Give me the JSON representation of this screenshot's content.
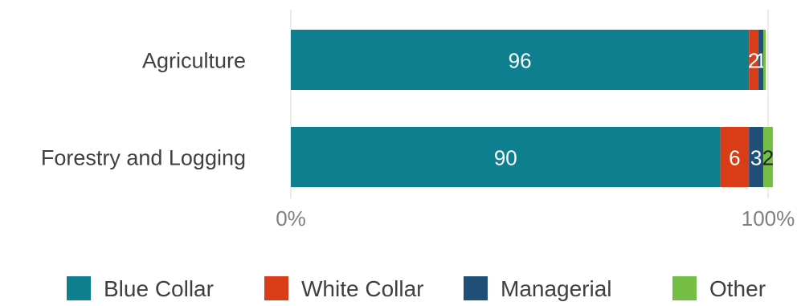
{
  "chart_data": {
    "type": "bar",
    "orientation": "horizontal",
    "stacked": true,
    "categories": [
      "Agriculture",
      "Forestry and Logging"
    ],
    "series": [
      {
        "name": "Blue Collar",
        "color": "#0e7f8f",
        "values": [
          96,
          90
        ]
      },
      {
        "name": "White Collar",
        "color": "#d93d17",
        "values": [
          2,
          6
        ]
      },
      {
        "name": "Managerial",
        "color": "#1f4e78",
        "values": [
          1,
          3
        ]
      },
      {
        "name": "Other",
        "color": "#74bf44",
        "values": [
          0.5,
          2
        ]
      }
    ],
    "data_labels": [
      [
        "96",
        "2",
        "1",
        ""
      ],
      [
        "90",
        "6",
        "3",
        "2"
      ]
    ],
    "data_label_colors": [
      "#ffffff",
      "#ffffff",
      "#ffffff",
      "#222222"
    ],
    "x_tick_labels": [
      "0%",
      "100%"
    ],
    "xlim": [
      0,
      100
    ],
    "grid": false,
    "legend_position": "bottom",
    "title": "",
    "xlabel": "",
    "ylabel": ""
  }
}
